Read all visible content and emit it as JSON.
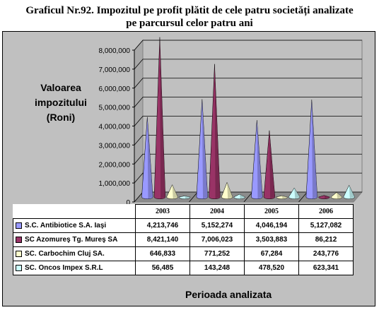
{
  "title_line1": "Graficul Nr.92. Impozitul pe profit plătit de cele patru societăți analizate",
  "title_line2": "pe parcursul celor patru ani",
  "ylabel_lines": [
    "Valoarea",
    "impozitului",
    "(Roni)"
  ],
  "xlabel": "Perioada analizata",
  "chart_data": {
    "type": "bar",
    "style": "3d-cone",
    "categories": [
      "2003",
      "2004",
      "2005",
      "2006"
    ],
    "series": [
      {
        "name": "S.C. Antibiotice S.A. Iaşi",
        "color": "#9999ff",
        "values": [
          4213746,
          5152274,
          4046194,
          5127082
        ],
        "labels": [
          "4,213,746",
          "5,152,274",
          "4,046,194",
          "5,127,082"
        ]
      },
      {
        "name": "SC Azomureş Tg. Mureş SA",
        "color": "#993366",
        "values": [
          8421140,
          7006023,
          3503883,
          86212
        ],
        "labels": [
          "8,421,140",
          "7,006,023",
          "3,503,883",
          "86,212"
        ]
      },
      {
        "name": "SC. Carbochim Cluj SA.",
        "color": "#ffffcc",
        "values": [
          646833,
          771252,
          67284,
          243776
        ],
        "labels": [
          "646,833",
          "771,252",
          "67,284",
          "243,776"
        ]
      },
      {
        "name": "SC. Oncos Impex S.R.L",
        "color": "#ccffff",
        "values": [
          56485,
          143248,
          478520,
          623341
        ],
        "labels": [
          "56,485",
          "143,248",
          "478,520",
          "623,341"
        ]
      }
    ],
    "yticks": [
      "0",
      "1,000,000",
      "2,000,000",
      "3,000,000",
      "4,000,000",
      "5,000,000",
      "6,000,000",
      "7,000,000",
      "8,000,000"
    ],
    "ylim": [
      0,
      8000000
    ],
    "grid": true,
    "legend": "data-table-below"
  }
}
